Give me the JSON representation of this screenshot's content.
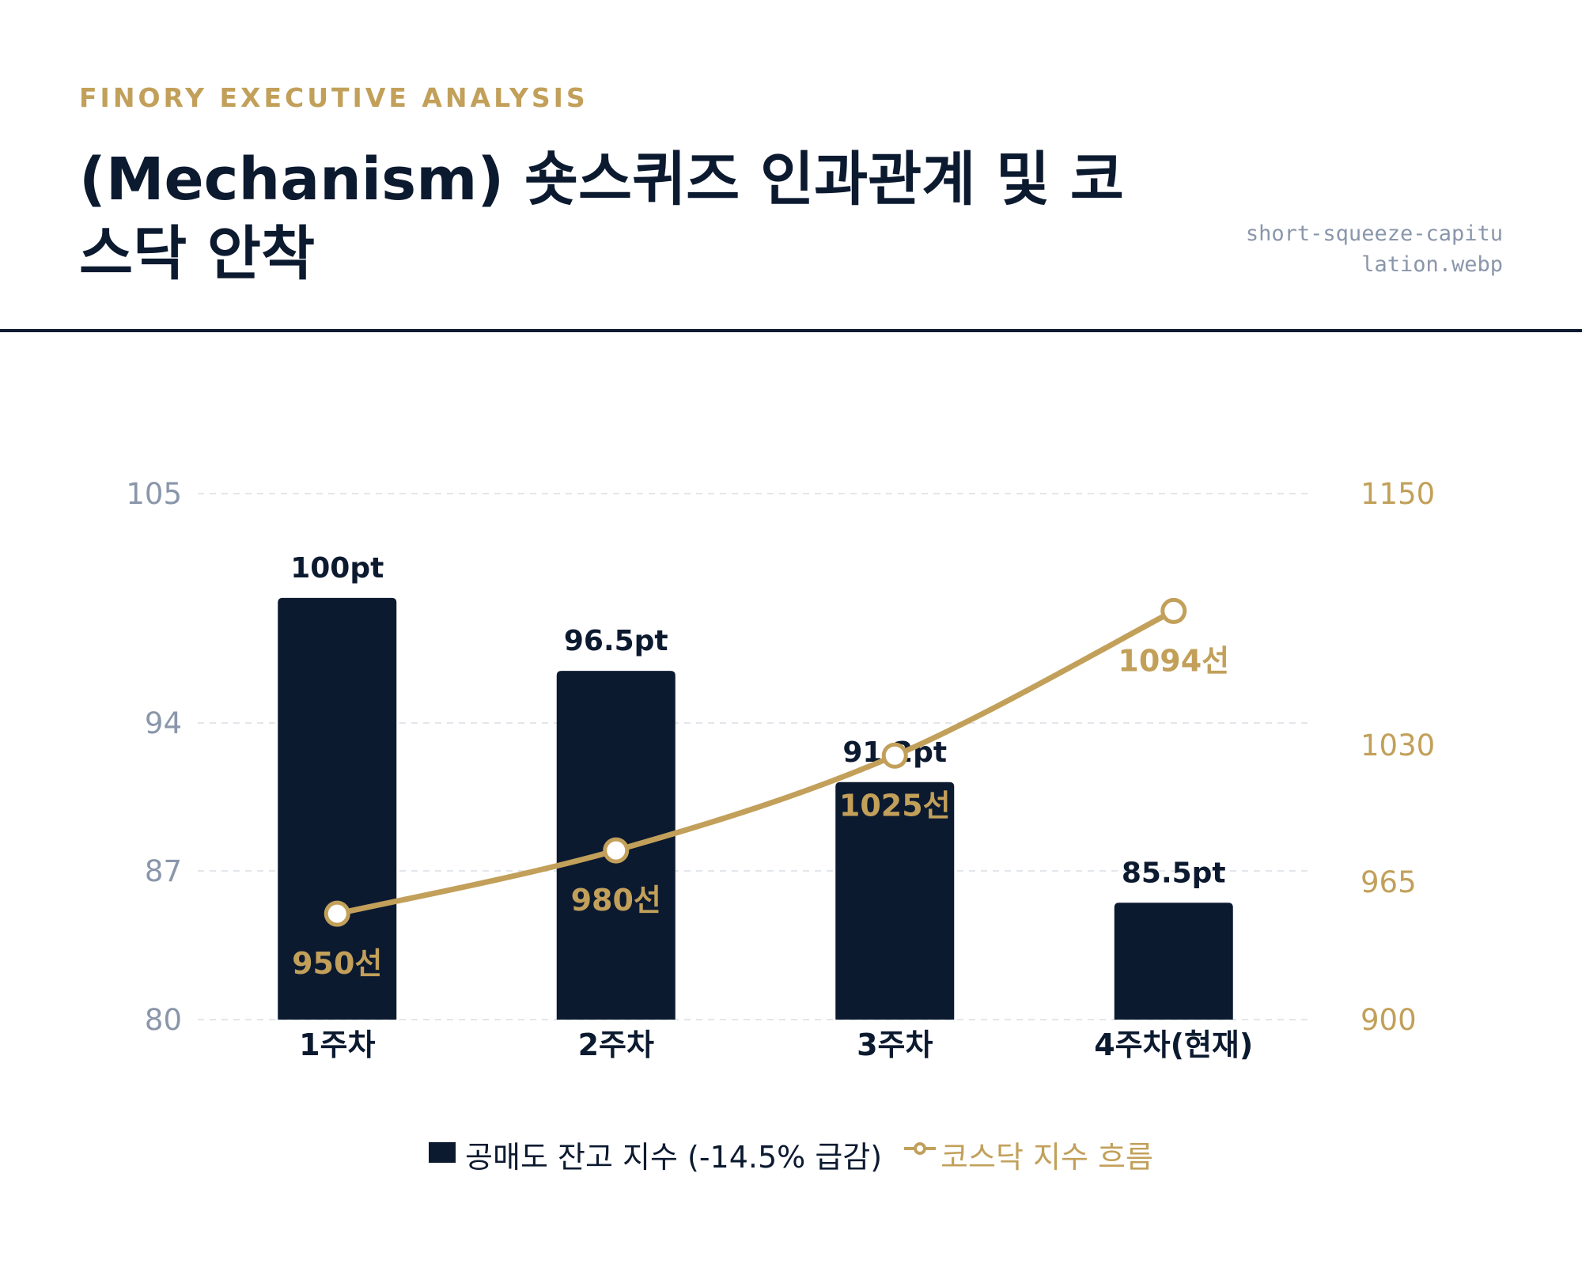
{
  "header": {
    "eyebrow": "FINORY EXECUTIVE ANALYSIS",
    "title": "(Mechanism) 숏스퀴즈 인과관계 및 코스닥 안착",
    "filename": "short-squeeze-capitulation.webp"
  },
  "colors": {
    "bar": "#0c1a30",
    "line": "#c2a05a",
    "left_axis": "#8a96aa",
    "right_axis": "#c2a05a",
    "grid": "#e3e6ea"
  },
  "chart_data": {
    "type": "bar",
    "categories": [
      "1주차",
      "2주차",
      "3주차",
      "4주차(현재)"
    ],
    "left_axis": {
      "ticks": [
        80,
        87,
        94,
        105
      ],
      "range": [
        80,
        105
      ]
    },
    "right_axis": {
      "ticks": [
        900,
        965,
        1030,
        1150
      ],
      "range": [
        900,
        1150
      ]
    },
    "grid": true,
    "legend_position": "bottom",
    "series": [
      {
        "name": "공매도 잔고 지수 (-14.5% 급감)",
        "type": "bar",
        "axis": "left",
        "values": [
          100,
          96.5,
          91.2,
          85.5
        ],
        "labels": [
          "100pt",
          "96.5pt",
          "91.2pt",
          "85.5pt"
        ]
      },
      {
        "name": "코스닥 지수 흐름",
        "type": "line",
        "axis": "right",
        "values": [
          950,
          980,
          1025,
          1094
        ],
        "labels": [
          "950선",
          "980선",
          "1025선",
          "1094선"
        ]
      }
    ]
  }
}
